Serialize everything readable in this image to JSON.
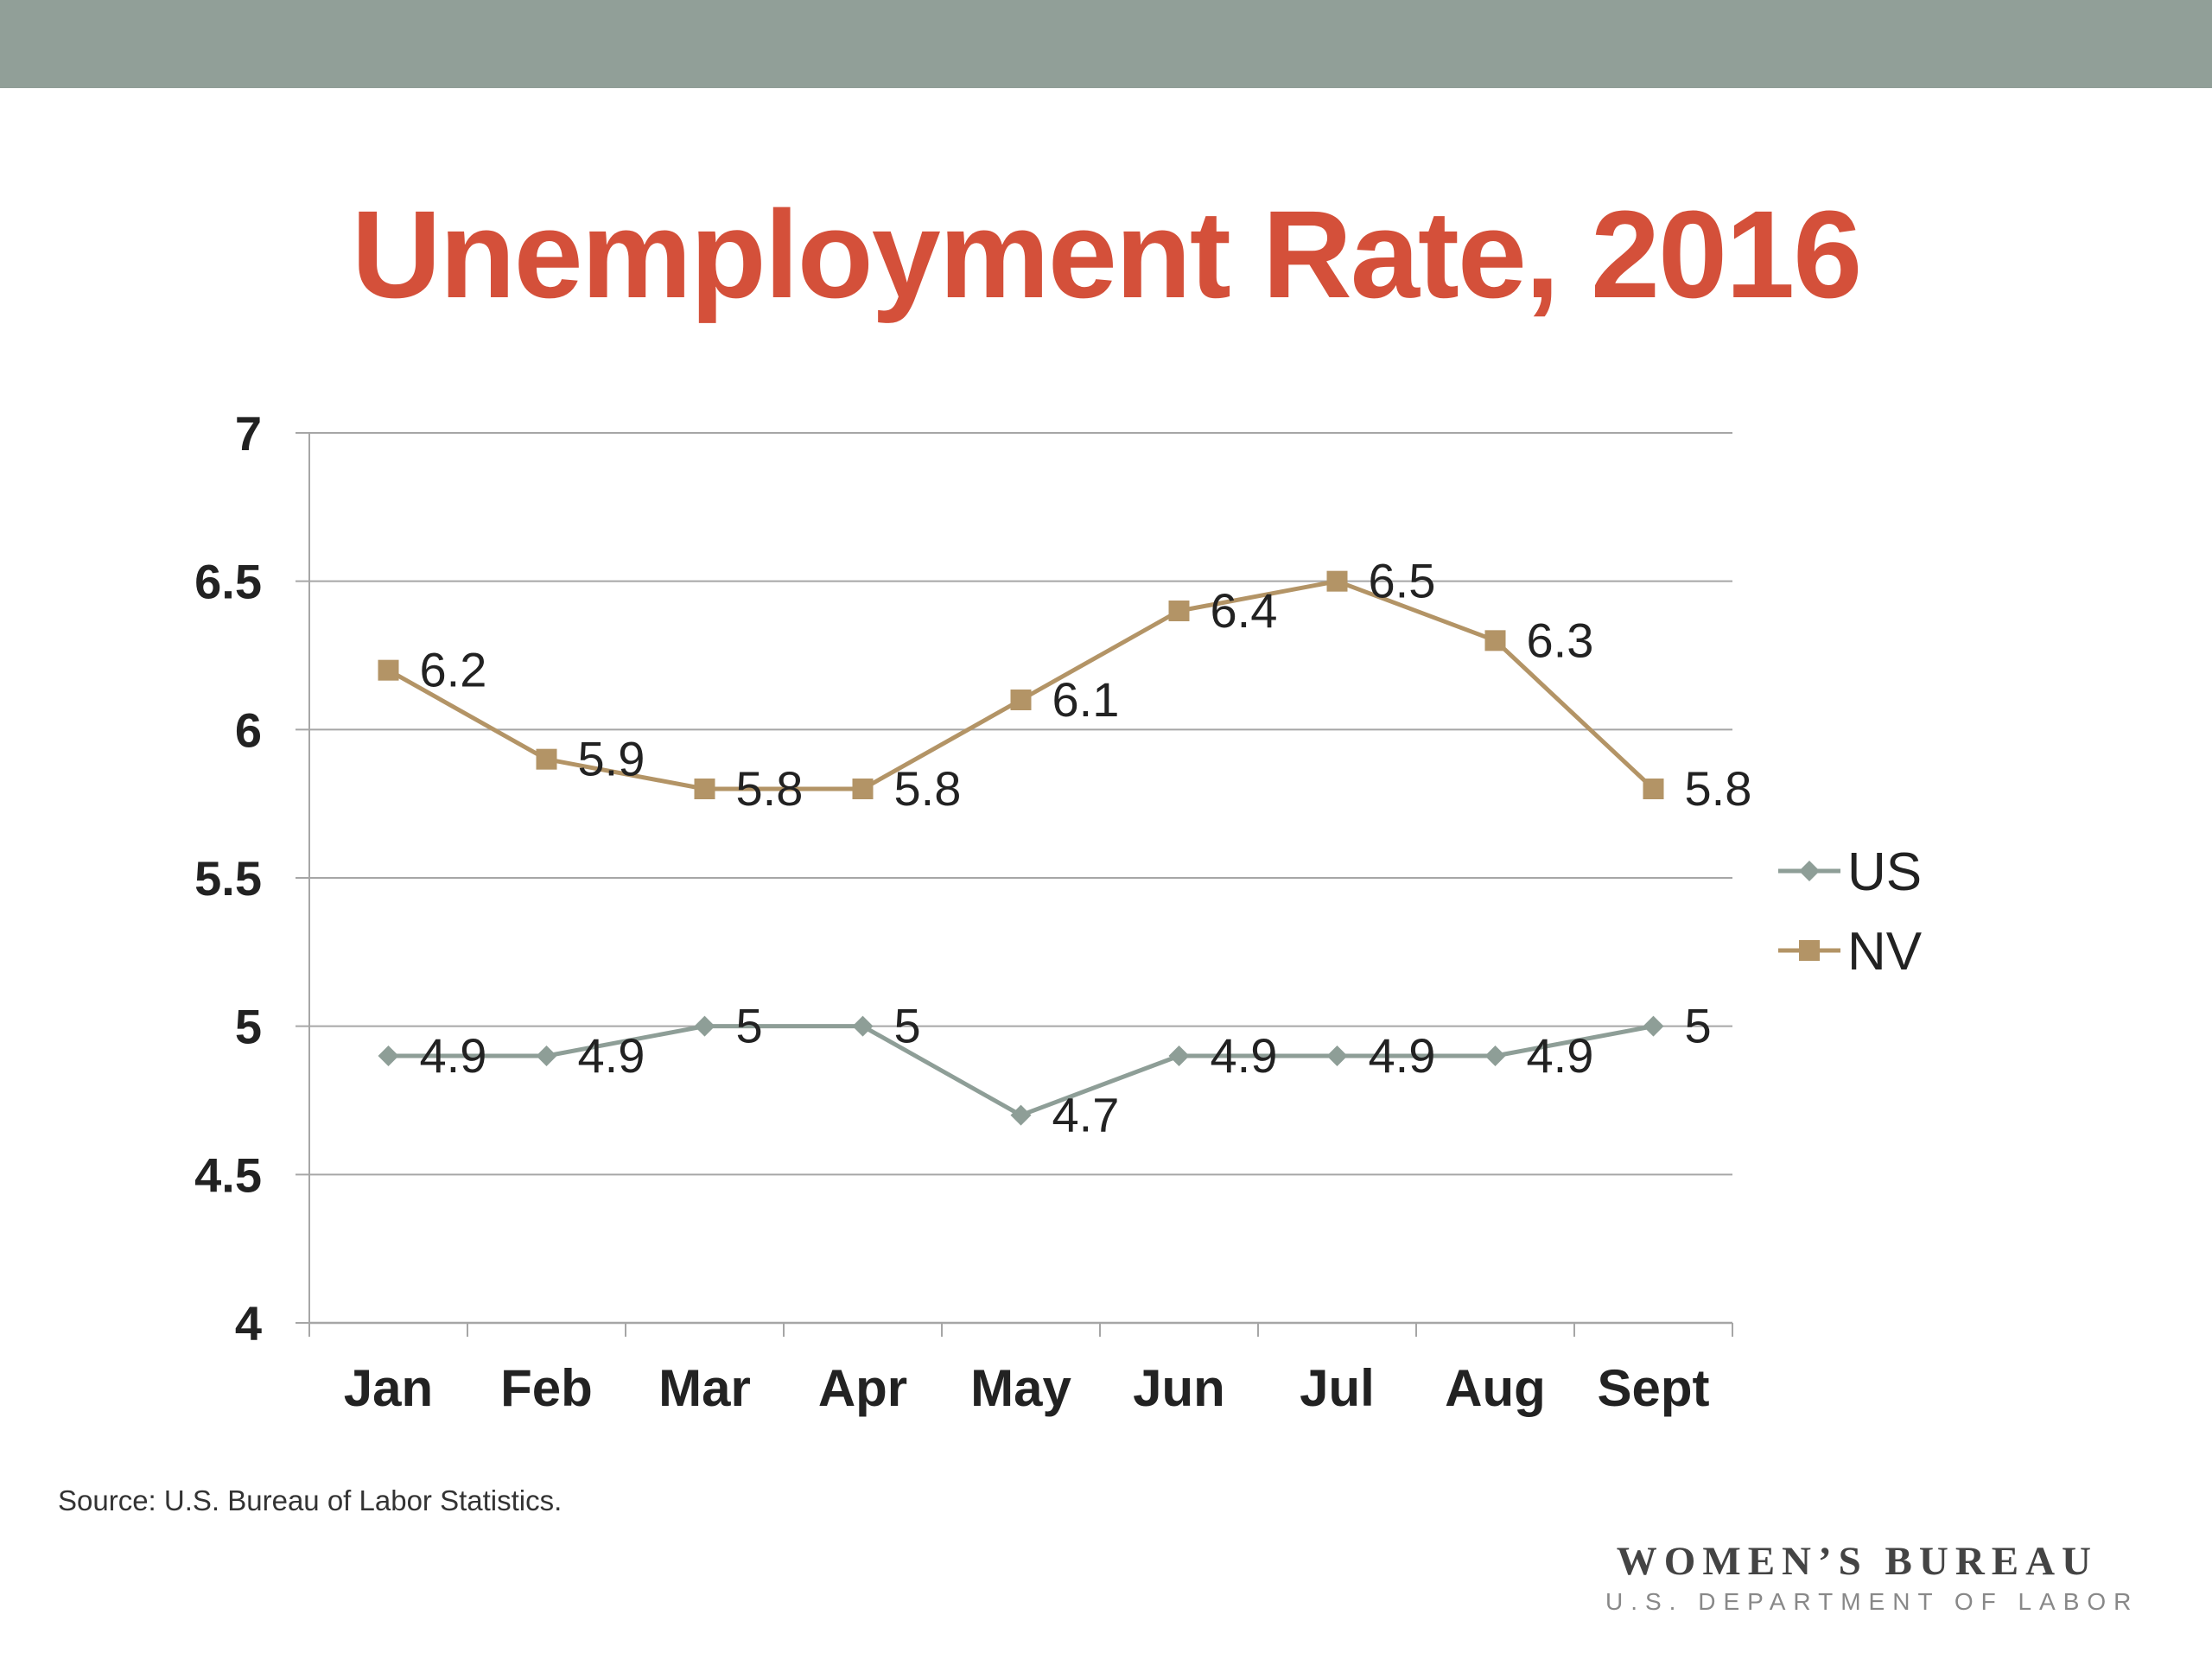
{
  "colors": {
    "top_bar": "#919f98",
    "title": "#d4503a",
    "us": "#8e9e97",
    "nv": "#b39466",
    "grid": "#a6a6a6",
    "text": "#222222"
  },
  "slide": {
    "title": "Unemployment Rate, 2016",
    "source": "Source: U.S. Bureau of Labor Statistics.",
    "logo_line1": "WOMEN’S BUREAU",
    "logo_line2": "U.S. DEPARTMENT OF LABOR"
  },
  "chart_data": {
    "type": "line",
    "title": "Unemployment Rate, 2016",
    "categories": [
      "Jan",
      "Feb",
      "Mar",
      "Apr",
      "May",
      "Jun",
      "Jul",
      "Aug",
      "Sept"
    ],
    "ylim": [
      4,
      7
    ],
    "yticks": [
      4,
      4.5,
      5,
      5.5,
      6,
      6.5,
      7
    ],
    "ytick_labels": [
      "4",
      "4.5",
      "5",
      "5.5",
      "6",
      "6.5",
      "7"
    ],
    "grid": true,
    "legend_position": "right",
    "series": [
      {
        "name": "US",
        "marker": "diamond",
        "values": [
          4.9,
          4.9,
          5,
          5,
          4.7,
          4.9,
          4.9,
          4.9,
          5
        ],
        "labels": [
          "4.9",
          "4.9",
          "5",
          "5",
          "4.7",
          "4.9",
          "4.9",
          "4.9",
          "5"
        ]
      },
      {
        "name": "NV",
        "marker": "square",
        "values": [
          6.2,
          5.9,
          5.8,
          5.8,
          6.1,
          6.4,
          6.5,
          6.3,
          5.8
        ],
        "labels": [
          "6.2",
          "5.9",
          "5.8",
          "5.8",
          "6.1",
          "6.4",
          "6.5",
          "6.3",
          "5.8"
        ]
      }
    ]
  }
}
